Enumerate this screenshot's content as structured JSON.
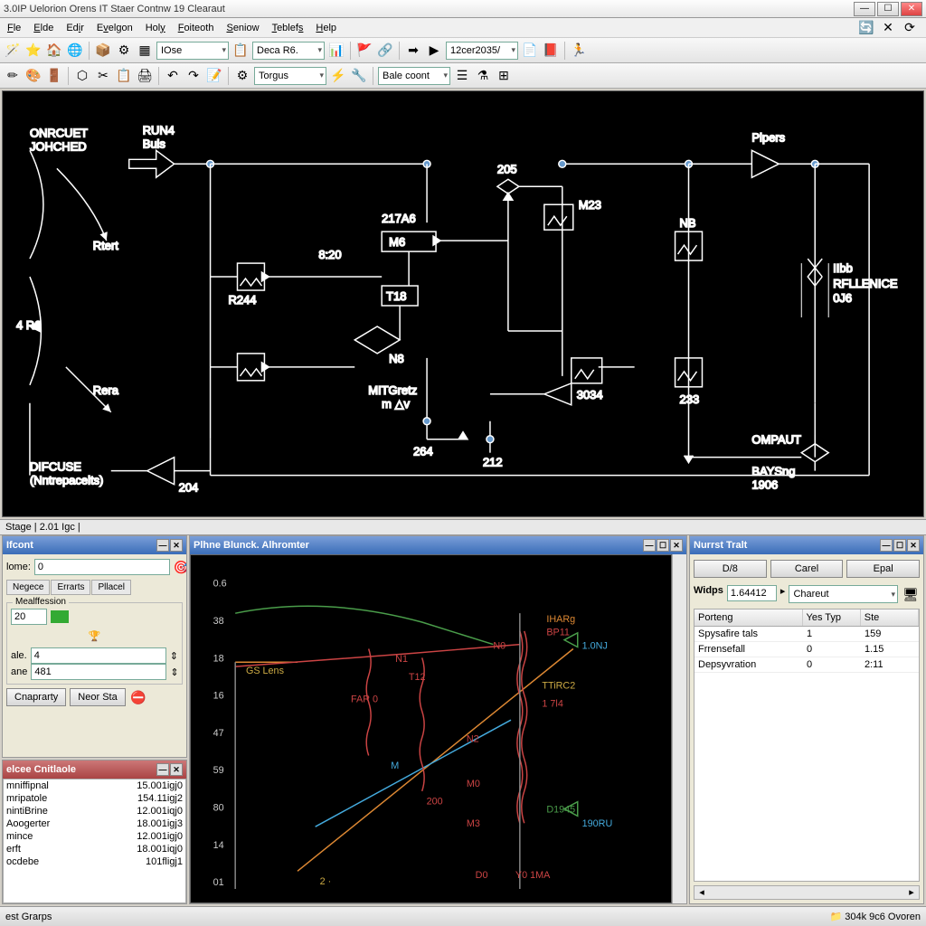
{
  "window": {
    "title": "3.0IP Uelorion Orens IT Staer Contnw 19 Clearaut"
  },
  "menu": {
    "items": [
      "File",
      "Elde",
      "Edir",
      "Evelgon",
      "Holy",
      "Foiteoth",
      "Seniow",
      "Teblefs",
      "Help"
    ]
  },
  "toolbar1": {
    "combo1": "IOse",
    "combo2": "Deca R6.",
    "combo3": "12cer2035/"
  },
  "toolbar2": {
    "combo1": "Torgus",
    "combo2": "Bale coont"
  },
  "schematic": {
    "stroke": "#ffffff",
    "node_fill": "#6699cc",
    "labels": {
      "onrcuet": "ONRCUET",
      "johched": "JOHCHED",
      "rtert": "Rtert",
      "rera": "Rera",
      "difcuse": "DIFCUSE",
      "ntrepacets": "(Nntrepacelts)",
      "run4": "RUN4",
      "buls": "Buls",
      "ar6": "4 R6",
      "r244": "R244",
      "n204": "204",
      "v820": "8:20",
      "v217a6": "217A6",
      "w6": "M6",
      "t18": "T18",
      "n8": "N8",
      "mtgiet": "MITGretz",
      "mav": "m △v",
      "n264": "264",
      "n212": "212",
      "n205": "205",
      "m23": "M23",
      "n3034": "3034",
      "pipers": "Pipers",
      "nb": "NB",
      "n233": "233",
      "tibo": "IIbb",
      "rflenice": "RFLLENICE",
      "o06": "0J6",
      "ompaut": "OMPAUT",
      "blaysng": "BAYSng",
      "n1906": "1906"
    }
  },
  "status_strip": "Stage  | 2.01 Igc |",
  "left_panel": {
    "title": "Ifcont",
    "name_lbl": "lome:",
    "name_val": "0",
    "tabs": [
      "Negece",
      "Errarts",
      "Pllacel"
    ],
    "group": "Mealffession",
    "field1": "20",
    "ale_lbl": "ale.",
    "ale_val": "4",
    "ane_lbl": "ane",
    "ane_val": "481",
    "btn1": "Cnaprarty",
    "btn2": "Neor Sta"
  },
  "crit_panel": {
    "title": "elcee Cnitlaole",
    "rows": [
      {
        "name": "mniffipnal",
        "val": "15.001igj0"
      },
      {
        "name": "mripatole",
        "val": "154.11igj2"
      },
      {
        "name": "nintiBrine",
        "val": "12.001iqj0"
      },
      {
        "name": "Aoogerter",
        "val": "18.001igj3"
      },
      {
        "name": "mince",
        "val": "12.001igj0"
      },
      {
        "name": "erft",
        "val": "18.001iqj0"
      },
      {
        "name": "ocdebe",
        "val": "101fligj1"
      }
    ]
  },
  "chart_panel": {
    "title": "Plhne Blunck. Alhromter",
    "yaxis": [
      "0.6",
      "38",
      "18",
      "16",
      "47",
      "59",
      "80",
      "14",
      "01"
    ],
    "labels": {
      "gslens": "GS Lens",
      "far0": "FAR 0",
      "t12": "T12",
      "m": "M",
      "n1": "N1",
      "bp11": "BP11",
      "ttarc2": "TTiRC2",
      "r171": "1 7l4",
      "n2": "N2",
      "m0": "M0",
      "m3": "M3",
      "n200": "200",
      "d1945": "D1945",
      "d0": "D0",
      "y01a": "Y0 1MA",
      "t10mj": "1.0NJ",
      "r190ru": "190RU",
      "n0": "N0",
      "iharg": "IHARg"
    },
    "colors": {
      "green": "#4a9d4a",
      "red": "#cc4444",
      "orange": "#dd8833",
      "cyan": "#44aadd",
      "yellow": "#ccaa44"
    }
  },
  "right_panel": {
    "title": "Nurrst Tralt",
    "btn1": "D/8",
    "btn2": "Carel",
    "btn3": "Epal",
    "widps_lbl": "Widps",
    "widps_val": "1.64412",
    "combo": "Chareut",
    "columns": [
      "Porteng",
      "Yes Typ",
      "Ste"
    ],
    "rows": [
      {
        "c0": "Spysafire tals",
        "c1": "1",
        "c2": "159"
      },
      {
        "c0": "Frrensefall",
        "c1": "0",
        "c2": "1.15"
      },
      {
        "c0": "Depsyvration",
        "c1": "0",
        "c2": "2:11"
      }
    ]
  },
  "status_bar": {
    "left": "est Grarps",
    "right": "304k 9c6 Ovoren"
  }
}
